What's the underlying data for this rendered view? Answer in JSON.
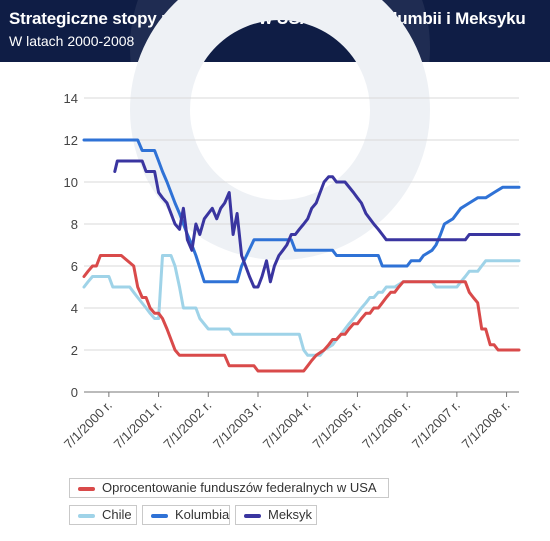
{
  "header": {
    "title": "Strategiczne stopy procentowe w USA, Chile, Kolumbii i Meksyku",
    "subtitle": "W latach 2000-2008"
  },
  "colors": {
    "header_bg": "#0f1d45",
    "usa": "#d94a4a",
    "chile": "#9fd3e8",
    "kolumbia": "#2f72d6",
    "meksyk": "#3a35a0"
  },
  "chart_data": {
    "type": "line",
    "title": "Strategiczne stopy procentowe w USA, Chile, Kolumbii i Meksyku",
    "subtitle": "W latach 2000-2008",
    "xlabel": "",
    "ylabel": "",
    "ylim": [
      0,
      14
    ],
    "yticks": [
      0,
      2,
      4,
      6,
      8,
      10,
      12,
      14
    ],
    "xlim": [
      2000.0,
      2008.75
    ],
    "xtick_labels": [
      "7/1/2000 r.",
      "7/1/2001 r.",
      "7/1/2002 r.",
      "7/1/2003 r.",
      "7/1/2004 r.",
      "7/1/2005 r.",
      "7/1/2006 r.",
      "7/1/2007 r.",
      "7/1/2008 r."
    ],
    "xtick_values": [
      2000.5,
      2001.5,
      2002.5,
      2003.5,
      2004.5,
      2005.5,
      2006.5,
      2007.5,
      2008.5
    ],
    "grid": "horizontal",
    "legend_position": "bottom",
    "series": [
      {
        "name": "Oprocentowanie funduszów federalnych w USA",
        "color": "#d94a4a",
        "x": [
          2000.0,
          2000.08,
          2000.17,
          2000.25,
          2000.33,
          2000.42,
          2000.5,
          2000.75,
          2001.0,
          2001.04,
          2001.08,
          2001.17,
          2001.25,
          2001.33,
          2001.42,
          2001.5,
          2001.58,
          2001.67,
          2001.75,
          2001.83,
          2001.92,
          2002.0,
          2002.83,
          2002.92,
          2003.42,
          2003.5,
          2004.42,
          2004.5,
          2004.58,
          2004.67,
          2004.83,
          2004.92,
          2005.0,
          2005.08,
          2005.17,
          2005.25,
          2005.33,
          2005.42,
          2005.5,
          2005.58,
          2005.67,
          2005.75,
          2005.83,
          2005.92,
          2006.0,
          2006.08,
          2006.17,
          2006.25,
          2006.33,
          2006.42,
          2006.5,
          2007.67,
          2007.75,
          2007.83,
          2007.92,
          2008.0,
          2008.08,
          2008.17,
          2008.25,
          2008.33,
          2008.42,
          2008.75
        ],
        "y": [
          5.5,
          5.75,
          6.0,
          6.0,
          6.5,
          6.5,
          6.5,
          6.5,
          6.0,
          5.5,
          5.0,
          4.5,
          4.5,
          4.0,
          3.75,
          3.75,
          3.5,
          3.0,
          2.5,
          2.0,
          1.75,
          1.75,
          1.75,
          1.25,
          1.25,
          1.0,
          1.0,
          1.25,
          1.5,
          1.75,
          2.0,
          2.25,
          2.5,
          2.5,
          2.75,
          2.75,
          3.0,
          3.25,
          3.25,
          3.5,
          3.75,
          3.75,
          4.0,
          4.0,
          4.25,
          4.5,
          4.75,
          4.75,
          5.0,
          5.25,
          5.25,
          5.25,
          4.75,
          4.5,
          4.25,
          3.0,
          3.0,
          2.25,
          2.25,
          2.0,
          2.0,
          2.0
        ]
      },
      {
        "name": "Chile",
        "color": "#9fd3e8",
        "x": [
          2000.0,
          2000.08,
          2000.17,
          2000.5,
          2000.58,
          2000.92,
          2001.0,
          2001.08,
          2001.25,
          2001.33,
          2001.42,
          2001.5,
          2001.58,
          2001.67,
          2001.75,
          2001.83,
          2001.92,
          2002.0,
          2002.25,
          2002.33,
          2002.5,
          2002.92,
          2003.0,
          2003.42,
          2003.5,
          2004.33,
          2004.42,
          2004.5,
          2004.75,
          2004.83,
          2005.0,
          2005.08,
          2005.17,
          2005.25,
          2005.33,
          2005.42,
          2005.5,
          2005.58,
          2005.67,
          2005.75,
          2005.83,
          2005.92,
          2006.0,
          2006.08,
          2006.17,
          2006.25,
          2006.42,
          2006.5,
          2007.0,
          2007.08,
          2007.5,
          2007.58,
          2007.67,
          2007.75,
          2007.92,
          2008.0,
          2008.08,
          2008.25,
          2008.33,
          2008.75
        ],
        "y": [
          5.0,
          5.25,
          5.5,
          5.5,
          5.0,
          5.0,
          4.75,
          4.5,
          4.0,
          3.75,
          3.5,
          3.5,
          6.5,
          6.5,
          6.5,
          6.0,
          5.0,
          4.0,
          4.0,
          3.5,
          3.0,
          3.0,
          2.75,
          2.75,
          2.75,
          2.75,
          2.0,
          1.75,
          1.75,
          2.0,
          2.25,
          2.5,
          2.75,
          3.0,
          3.25,
          3.5,
          3.75,
          4.0,
          4.25,
          4.5,
          4.5,
          4.75,
          4.75,
          5.0,
          5.0,
          5.0,
          5.25,
          5.25,
          5.25,
          5.0,
          5.0,
          5.25,
          5.5,
          5.75,
          5.75,
          6.0,
          6.25,
          6.25,
          6.25,
          6.25
        ],
        "color_note": ""
      },
      {
        "name": "Kolumbia",
        "color": "#2f72d6",
        "x": [
          2000.0,
          2001.08,
          2001.17,
          2001.42,
          2001.5,
          2001.58,
          2001.67,
          2001.75,
          2001.83,
          2001.92,
          2002.0,
          2002.08,
          2002.17,
          2002.25,
          2002.42,
          2003.08,
          2003.17,
          2003.42,
          2003.5,
          2004.17,
          2004.25,
          2004.42,
          2005.0,
          2005.08,
          2005.92,
          2006.0,
          2006.5,
          2006.58,
          2006.75,
          2006.83,
          2007.0,
          2007.08,
          2007.17,
          2007.25,
          2007.42,
          2007.58,
          2007.75,
          2007.92,
          2008.08,
          2008.25,
          2008.42,
          2008.75
        ],
        "y": [
          12.0,
          12.0,
          11.5,
          11.5,
          11.0,
          10.5,
          10.0,
          9.5,
          9.0,
          8.5,
          8.0,
          7.5,
          7.0,
          6.5,
          5.25,
          5.25,
          6.0,
          7.25,
          7.25,
          7.25,
          6.75,
          6.75,
          6.75,
          6.5,
          6.5,
          6.0,
          6.0,
          6.25,
          6.25,
          6.5,
          6.75,
          7.0,
          7.5,
          8.0,
          8.25,
          8.75,
          9.0,
          9.25,
          9.25,
          9.5,
          9.75,
          9.75
        ]
      },
      {
        "name": "Meksyk",
        "color": "#3a35a0",
        "x": [
          2000.62,
          2000.67,
          2001.17,
          2001.25,
          2001.42,
          2001.5,
          2001.58,
          2001.67,
          2001.75,
          2001.83,
          2001.92,
          2002.0,
          2002.08,
          2002.17,
          2002.25,
          2002.33,
          2002.42,
          2002.5,
          2002.58,
          2002.67,
          2002.75,
          2002.83,
          2002.92,
          2003.0,
          2003.08,
          2003.17,
          2003.25,
          2003.33,
          2003.42,
          2003.5,
          2003.58,
          2003.67,
          2003.75,
          2003.83,
          2003.92,
          2004.0,
          2004.08,
          2004.17,
          2004.25,
          2004.33,
          2004.42,
          2004.5,
          2004.58,
          2004.67,
          2004.75,
          2004.83,
          2004.92,
          2005.0,
          2005.08,
          2005.17,
          2005.25,
          2005.42,
          2005.5,
          2005.58,
          2005.67,
          2005.75,
          2005.83,
          2005.92,
          2006.0,
          2006.08,
          2006.17,
          2006.25,
          2006.42,
          2006.5,
          2006.75,
          2007.67,
          2007.75,
          2008.75
        ],
        "y": [
          10.5,
          11.0,
          11.0,
          10.5,
          10.5,
          9.5,
          9.25,
          9.0,
          8.5,
          8.0,
          7.75,
          8.75,
          7.25,
          6.75,
          8.0,
          7.5,
          8.25,
          8.5,
          8.75,
          8.25,
          8.75,
          9.0,
          9.5,
          7.5,
          8.5,
          6.5,
          6.0,
          5.5,
          5.0,
          5.0,
          5.5,
          6.25,
          5.25,
          6.0,
          6.5,
          6.75,
          7.0,
          7.5,
          7.5,
          7.75,
          8.0,
          8.25,
          8.75,
          9.0,
          9.5,
          10.0,
          10.25,
          10.25,
          10.0,
          10.0,
          10.0,
          9.5,
          9.25,
          9.0,
          8.5,
          8.25,
          8.0,
          7.75,
          7.5,
          7.25,
          7.25,
          7.25,
          7.25,
          7.25,
          7.25,
          7.25,
          7.5,
          7.5
        ]
      }
    ]
  }
}
